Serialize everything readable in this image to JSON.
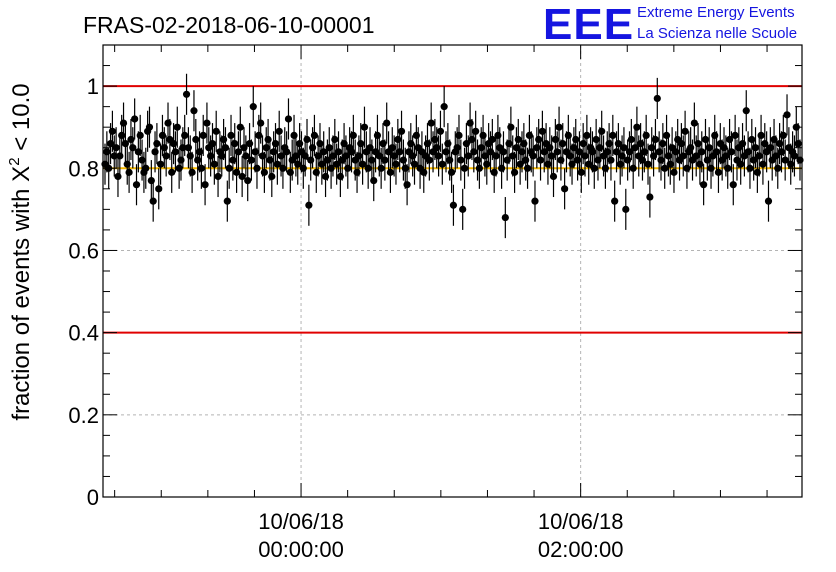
{
  "title": "FRAS-02-2018-06-10-00001",
  "logo": {
    "mark": "EEE",
    "line1": "Extreme Energy Events",
    "line2": "La Scienza nelle Scuole",
    "color": "#1515e0"
  },
  "chart_data": {
    "type": "scatter",
    "title": "FRAS-02-2018-06-10-00001",
    "ylabel_prefix": "fraction of events with ",
    "ylabel_symbol": "X",
    "ylabel_sup": "2",
    "ylabel_suffix": " < 10.0",
    "ylim": [
      0,
      1.1
    ],
    "yticks": [
      0,
      0.2,
      0.4,
      0.6,
      0.8,
      1
    ],
    "ytick_labels": [
      "0",
      "0.2",
      "0.4",
      "0.6",
      "0.8",
      "1"
    ],
    "xlim": [
      "2018-06-09 22:35:00",
      "2018-06-10 03:35:00"
    ],
    "xticks": [
      {
        "date": "10/06/18",
        "time": "00:00:00"
      },
      {
        "date": "10/06/18",
        "time": "02:00:00"
      }
    ],
    "x_minor_step_minutes": 20,
    "grid": true,
    "reference_lines": [
      {
        "y": 1.0,
        "color": "#e00000"
      },
      {
        "y": 0.4,
        "color": "#e00000"
      },
      {
        "y": 0.8,
        "color": "#f5b800"
      }
    ],
    "error_bar_typical": 0.05,
    "point_color": "#000000",
    "y": [
      0.81,
      0.84,
      0.8,
      0.86,
      0.89,
      0.83,
      0.85,
      0.78,
      0.83,
      0.88,
      0.91,
      0.86,
      0.81,
      0.79,
      0.87,
      0.85,
      0.92,
      0.76,
      0.84,
      0.88,
      0.82,
      0.79,
      0.8,
      0.89,
      0.9,
      0.77,
      0.72,
      0.84,
      0.86,
      0.75,
      0.81,
      0.88,
      0.85,
      0.83,
      0.91,
      0.87,
      0.79,
      0.86,
      0.84,
      0.9,
      0.8,
      0.82,
      0.85,
      0.88,
      0.98,
      0.85,
      0.83,
      0.79,
      0.94,
      0.87,
      0.82,
      0.84,
      0.8,
      0.88,
      0.76,
      0.91,
      0.85,
      0.83,
      0.86,
      0.81,
      0.89,
      0.78,
      0.84,
      0.83,
      0.87,
      0.85,
      0.72,
      0.8,
      0.88,
      0.82,
      0.86,
      0.79,
      0.84,
      0.9,
      0.78,
      0.85,
      0.83,
      0.77,
      0.86,
      0.82,
      0.95,
      0.84,
      0.8,
      0.88,
      0.91,
      0.83,
      0.79,
      0.85,
      0.87,
      0.82,
      0.78,
      0.84,
      0.86,
      0.81,
      0.89,
      0.83,
      0.8,
      0.85,
      0.84,
      0.92,
      0.79,
      0.82,
      0.88,
      0.83,
      0.81,
      0.86,
      0.84,
      0.8,
      0.83,
      0.87,
      0.71,
      0.82,
      0.85,
      0.88,
      0.79,
      0.83,
      0.86,
      0.81,
      0.84,
      0.78,
      0.82,
      0.85,
      0.8,
      0.83,
      0.87,
      0.81,
      0.84,
      0.78,
      0.82,
      0.86,
      0.83,
      0.8,
      0.85,
      0.84,
      0.88,
      0.82,
      0.79,
      0.83,
      0.86,
      0.81,
      0.9,
      0.84,
      0.8,
      0.85,
      0.82,
      0.77,
      0.84,
      0.88,
      0.83,
      0.8,
      0.86,
      0.82,
      0.91,
      0.84,
      0.79,
      0.85,
      0.83,
      0.81,
      0.87,
      0.84,
      0.89,
      0.82,
      0.8,
      0.76,
      0.84,
      0.86,
      0.83,
      0.81,
      0.88,
      0.85,
      0.8,
      0.84,
      0.79,
      0.83,
      0.86,
      0.82,
      0.91,
      0.84,
      0.87,
      0.85,
      0.83,
      0.89,
      0.81,
      0.95,
      0.84,
      0.86,
      0.82,
      0.79,
      0.71,
      0.84,
      0.85,
      0.88,
      0.82,
      0.7,
      0.8,
      0.86,
      0.83,
      0.91,
      0.87,
      0.84,
      0.89,
      0.82,
      0.8,
      0.85,
      0.88,
      0.83,
      0.81,
      0.86,
      0.84,
      0.87,
      0.79,
      0.83,
      0.88,
      0.85,
      0.8,
      0.84,
      0.68,
      0.82,
      0.86,
      0.9,
      0.83,
      0.79,
      0.85,
      0.87,
      0.81,
      0.84,
      0.86,
      0.82,
      0.8,
      0.88,
      0.84,
      0.83,
      0.72,
      0.85,
      0.87,
      0.82,
      0.89,
      0.84,
      0.86,
      0.81,
      0.85,
      0.83,
      0.78,
      0.87,
      0.84,
      0.9,
      0.82,
      0.86,
      0.75,
      0.84,
      0.88,
      0.83,
      0.81,
      0.85,
      0.87,
      0.82,
      0.84,
      0.79,
      0.86,
      0.83,
      0.88,
      0.81,
      0.85,
      0.84,
      0.8,
      0.87,
      0.82,
      0.85,
      0.89,
      0.83,
      0.8,
      0.84,
      0.86,
      0.82,
      0.88,
      0.72,
      0.84,
      0.86,
      0.81,
      0.83,
      0.85,
      0.7,
      0.82,
      0.84,
      0.87,
      0.8,
      0.85,
      0.9,
      0.83,
      0.86,
      0.82,
      0.84,
      0.88,
      0.81,
      0.73,
      0.85,
      0.83,
      0.87,
      0.97,
      0.84,
      0.82,
      0.86,
      0.8,
      0.88,
      0.83,
      0.81,
      0.85,
      0.79,
      0.84,
      0.87,
      0.82,
      0.86,
      0.83,
      0.89,
      0.8,
      0.84,
      0.85,
      0.82,
      0.91,
      0.83,
      0.86,
      0.81,
      0.84,
      0.76,
      0.87,
      0.82,
      0.85,
      0.8,
      0.83,
      0.88,
      0.84,
      0.79,
      0.86,
      0.82,
      0.85,
      0.83,
      0.8,
      0.87,
      0.84,
      0.76,
      0.88,
      0.82,
      0.85,
      0.81,
      0.86,
      0.83,
      0.94,
      0.84,
      0.8,
      0.87,
      0.82,
      0.85,
      0.79,
      0.83,
      0.88,
      0.81,
      0.86,
      0.84,
      0.72,
      0.85,
      0.82,
      0.87,
      0.83,
      0.8,
      0.86,
      0.84,
      0.88,
      0.82,
      0.93,
      0.85,
      0.81,
      0.84,
      0.83,
      0.9,
      0.86,
      0.82
    ]
  }
}
